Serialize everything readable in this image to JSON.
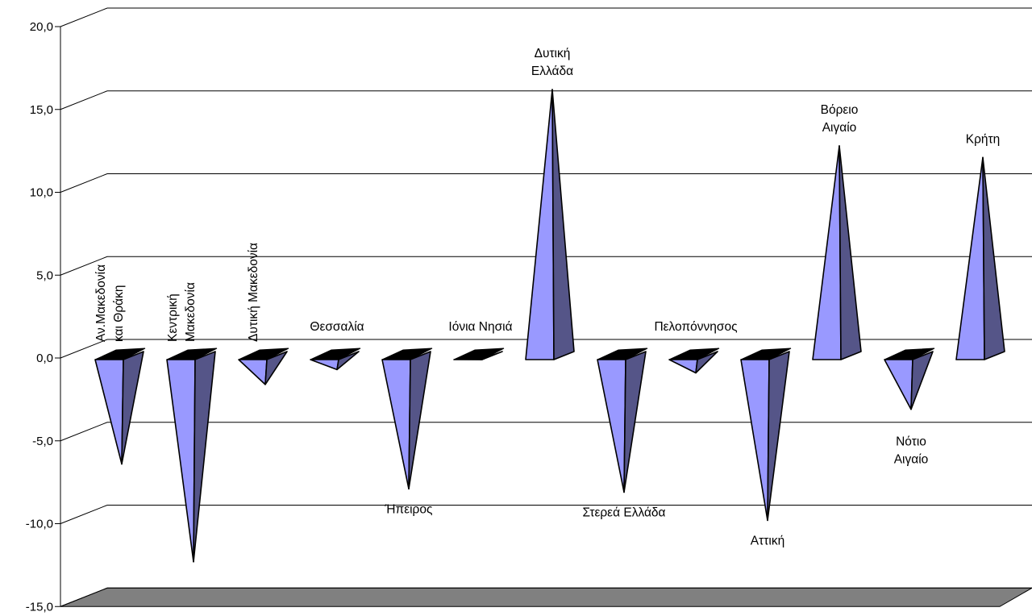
{
  "chart_data": {
    "type": "bar",
    "style": "3d-cone",
    "title": "",
    "xlabel": "",
    "ylabel": "",
    "ylim": [
      -15,
      20
    ],
    "yticks": [
      "20,0",
      "15,0",
      "10,0",
      "5,0",
      "0,0",
      "-5,0",
      "-10,0",
      "-15,0"
    ],
    "ytick_values": [
      20,
      15,
      10,
      5,
      0,
      -5,
      -10,
      -15
    ],
    "grid": true,
    "legend": "none",
    "colors": {
      "front": "#9999ff",
      "side": "#555588",
      "top": "#000000",
      "floor": "#808080"
    },
    "categories": [
      {
        "lines": [
          "Αν.Μακεδονία",
          "και Θράκη"
        ],
        "value": -6.4,
        "orient": "vertical"
      },
      {
        "lines": [
          "Κεντρική",
          "Μακεδονία"
        ],
        "value": -12.3,
        "orient": "vertical"
      },
      {
        "lines": [
          "Δυτική Μακεδονία"
        ],
        "value": -1.6,
        "orient": "vertical"
      },
      {
        "lines": [
          "Θεσσαλία"
        ],
        "value": -0.7,
        "orient": "horizontal"
      },
      {
        "lines": [
          "Ήπειρος"
        ],
        "value": -7.9,
        "orient": "horizontal"
      },
      {
        "lines": [
          "Ιόνια Νησιά"
        ],
        "value": -0.1,
        "orient": "horizontal"
      },
      {
        "lines": [
          "Δυτική",
          "Ελλάδα"
        ],
        "value": 16.2,
        "orient": "horizontal"
      },
      {
        "lines": [
          "Στερεά Ελλάδα"
        ],
        "value": -8.1,
        "orient": "horizontal"
      },
      {
        "lines": [
          "Πελοπόννησος"
        ],
        "value": -0.9,
        "orient": "horizontal"
      },
      {
        "lines": [
          "Αττική"
        ],
        "value": -9.8,
        "orient": "horizontal"
      },
      {
        "lines": [
          "Βόρειο",
          "Αιγαίο"
        ],
        "value": 12.8,
        "orient": "horizontal"
      },
      {
        "lines": [
          "Νότιο",
          "Αιγαίο"
        ],
        "value": -3.1,
        "orient": "horizontal"
      },
      {
        "lines": [
          "Κρήτη"
        ],
        "value": 12.1,
        "orient": "horizontal"
      }
    ]
  }
}
